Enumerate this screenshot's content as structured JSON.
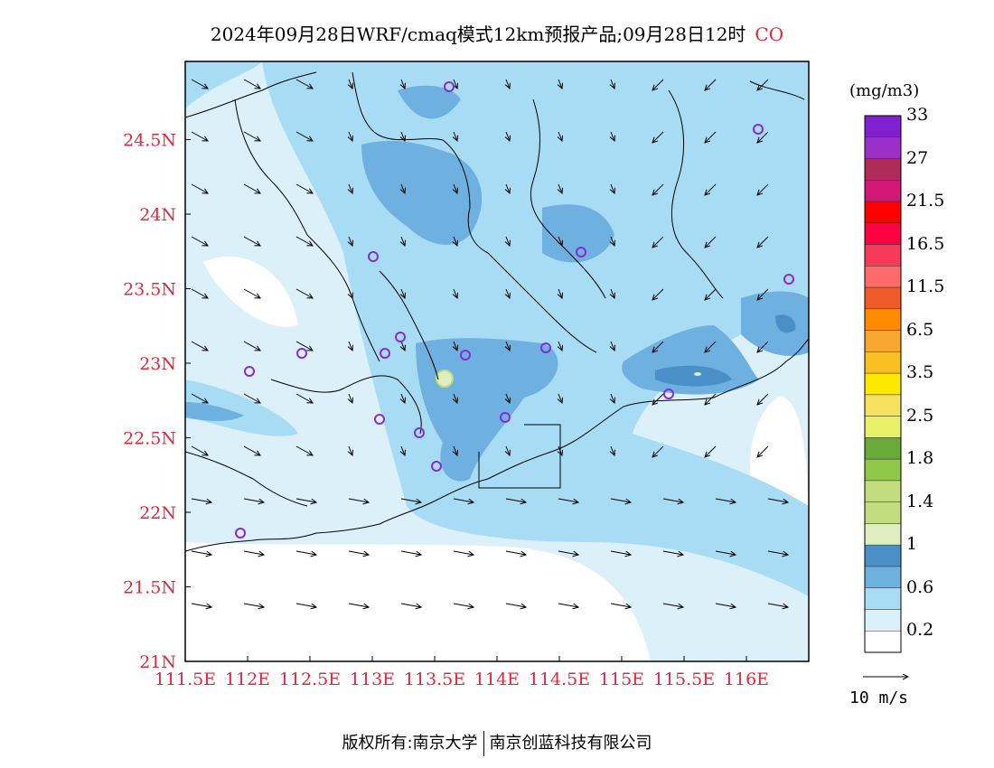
{
  "title": {
    "text": "2024年09月28日WRF/cmaq模式12km预报产品;09月28日12时",
    "species": "CO"
  },
  "unit": "(mg/m3)",
  "colorbar": {
    "colors": [
      "#ffffff",
      "#dcf0fa",
      "#a8dcf5",
      "#6eb0df",
      "#4a90c8",
      "#deeec0",
      "#c2dd7e",
      "#c2dd7e",
      "#8fc84a",
      "#6aaa3a",
      "#e8f06a",
      "#f5e060",
      "#ffe800",
      "#f8c020",
      "#f8a830",
      "#ff8c00",
      "#f05a28",
      "#ff6a6a",
      "#f83a5a",
      "#ff0040",
      "#ff0000",
      "#d01878",
      "#b02a5a",
      "#9a30c8",
      "#8020d0"
    ],
    "labels": [
      "0.2",
      "0.6",
      "1",
      "1.4",
      "1.8",
      "2.5",
      "3.5",
      "6.5",
      "11.5",
      "16.5",
      "21.5",
      "27",
      "33"
    ]
  },
  "axes": {
    "x_ticks": [
      "111.5E",
      "112E",
      "112.5E",
      "113E",
      "113.5E",
      "114E",
      "114.5E",
      "115E",
      "115.5E",
      "116E"
    ],
    "y_ticks": [
      "21N",
      "21.5N",
      "22N",
      "22.5N",
      "23N",
      "23.5N",
      "24N",
      "24.5N"
    ]
  },
  "colors": {
    "tick_label": "#e0283c",
    "station_marker": "#8a2ad0",
    "level_0": "#ffffff",
    "level_1": "#dcf0fa",
    "level_2": "#a8dcf5",
    "level_3": "#6eb0df",
    "level_4": "#4a90c8",
    "level_5": "#deeec0"
  },
  "reference_vector": "10 m/s",
  "footer": {
    "left": "版权所有:南京大学",
    "right": "南京创蓝科技有限公司"
  }
}
